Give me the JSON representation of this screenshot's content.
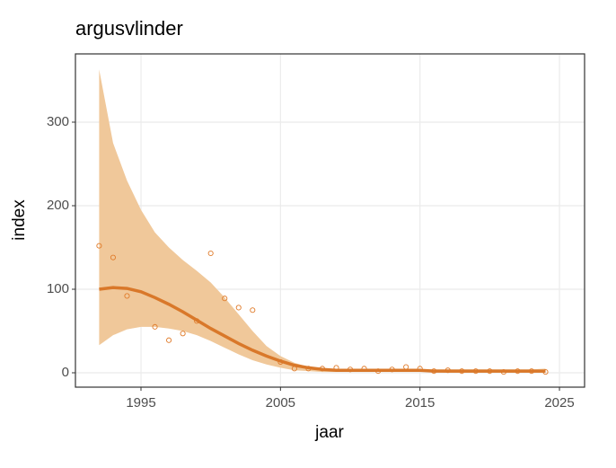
{
  "chart_data": {
    "type": "scatter",
    "title": "argusvlinder",
    "x_label": "jaar",
    "y_label": "index",
    "x": [
      1992,
      1993,
      1994,
      1995,
      1996,
      1997,
      1998,
      1999,
      2000,
      2001,
      2002,
      2003,
      2004,
      2005,
      2006,
      2007,
      2008,
      2009,
      2010,
      2011,
      2012,
      2013,
      2014,
      2015,
      2016,
      2017,
      2018,
      2019,
      2020,
      2021,
      2022,
      2023,
      2024
    ],
    "series": [
      {
        "kind": "points",
        "color": "#e07b2a",
        "values": [
          152,
          138,
          92,
          null,
          55,
          39,
          47,
          62,
          143,
          89,
          78,
          75,
          null,
          13,
          5,
          5,
          5,
          6,
          4,
          5,
          2,
          4,
          7,
          5,
          2,
          3,
          2,
          2,
          2,
          1,
          2,
          2,
          1
        ]
      },
      {
        "kind": "smooth",
        "color": "#d9782a",
        "values": [
          100,
          102,
          101,
          97,
          90,
          82,
          73,
          63,
          53,
          44,
          35,
          27,
          20,
          14,
          9,
          6,
          4,
          3,
          3,
          3,
          3,
          3,
          3,
          3,
          2,
          2,
          2,
          2,
          2,
          2,
          2,
          2,
          2
        ]
      }
    ],
    "ribbon": {
      "color": "#f0c89a",
      "lower": [
        33,
        45,
        52,
        55,
        55,
        53,
        50,
        45,
        38,
        30,
        22,
        15,
        10,
        6,
        3,
        2,
        1,
        1,
        1,
        1,
        1,
        1,
        1,
        1,
        1,
        0,
        0,
        0,
        0,
        0,
        0,
        0,
        0
      ],
      "upper": [
        363,
        275,
        230,
        195,
        168,
        150,
        135,
        122,
        108,
        90,
        70,
        50,
        32,
        20,
        12,
        7,
        5,
        4,
        4,
        4,
        4,
        4,
        4,
        4,
        4,
        4,
        4,
        4,
        4,
        4,
        4,
        4,
        5
      ]
    },
    "xlim": [
      1990.3,
      2026.8
    ],
    "xticks": [
      1995,
      2005,
      2015,
      2025
    ],
    "ylim": [
      -17.2,
      381.7
    ],
    "yticks": [
      0,
      100,
      200,
      300
    ],
    "grid": true
  }
}
